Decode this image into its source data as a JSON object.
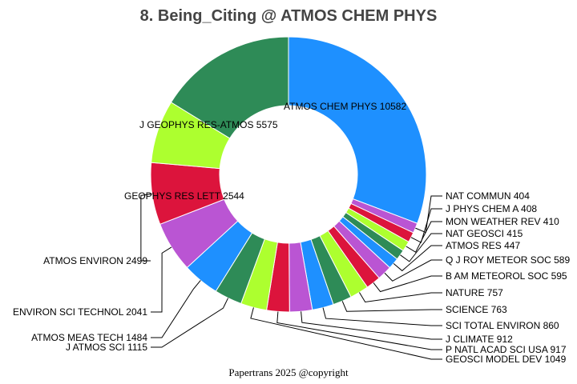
{
  "chart_data": {
    "type": "pie",
    "title": "8. Being_Citing @ ATMOS CHEM PHYS",
    "footer": "Papertrans 2025 @copyright",
    "donut": true,
    "slices": [
      {
        "label": "ATMOS CHEM PHYS",
        "value": 10582,
        "color": "#1E90FF"
      },
      {
        "label": "NAT COMMUN",
        "value": 404,
        "color": "#BA55D3"
      },
      {
        "label": "J PHYS CHEM A",
        "value": 408,
        "color": "#DC143C"
      },
      {
        "label": "MON WEATHER REV",
        "value": 410,
        "color": "#ADFF2F"
      },
      {
        "label": "NAT GEOSCI",
        "value": 415,
        "color": "#2E8B57"
      },
      {
        "label": "ATMOS RES",
        "value": 447,
        "color": "#1E90FF"
      },
      {
        "label": "Q J ROY METEOR SOC",
        "value": 589,
        "color": "#BA55D3"
      },
      {
        "label": "B AM METEOROL SOC",
        "value": 595,
        "color": "#DC143C"
      },
      {
        "label": "NATURE",
        "value": 757,
        "color": "#ADFF2F"
      },
      {
        "label": "SCIENCE",
        "value": 763,
        "color": "#2E8B57"
      },
      {
        "label": "SCI TOTAL ENVIRON",
        "value": 860,
        "color": "#1E90FF"
      },
      {
        "label": "J CLIMATE",
        "value": 912,
        "color": "#BA55D3"
      },
      {
        "label": "P NATL ACAD SCI USA",
        "value": 917,
        "color": "#DC143C"
      },
      {
        "label": "GEOSCI MODEL DEV",
        "value": 1049,
        "color": "#ADFF2F"
      },
      {
        "label": "J ATMOS SCI",
        "value": 1115,
        "color": "#2E8B57"
      },
      {
        "label": "ATMOS MEAS TECH",
        "value": 1484,
        "color": "#1E90FF"
      },
      {
        "label": "ENVIRON SCI TECHNOL",
        "value": 2041,
        "color": "#BA55D3"
      },
      {
        "label": "ATMOS ENVIRON",
        "value": 2499,
        "color": "#DC143C"
      },
      {
        "label": "GEOPHYS RES LETT",
        "value": 2544,
        "color": "#ADFF2F"
      },
      {
        "label": "J GEOPHYS RES-ATMOS",
        "value": 5575,
        "color": "#2E8B57"
      }
    ]
  }
}
